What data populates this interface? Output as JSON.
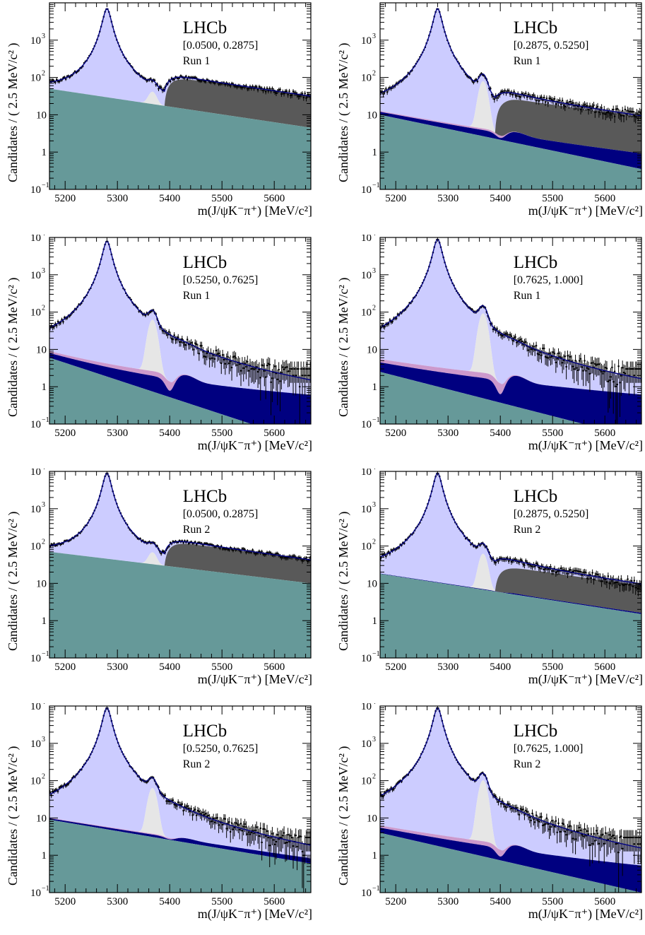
{
  "chart_data": [
    {
      "type": "histogram-fit",
      "experiment": "LHCb",
      "range_label": "[0.0500, 0.2875]",
      "run_label": "Run 1",
      "comb_start": 50,
      "comb_end": 4.5,
      "kpi_amp": 0,
      "kpi2_amp": 0,
      "bs_amp": 22,
      "partial_amp": 75,
      "b0_amp": 7000,
      "xlabel": "m(J/ψK⁻π⁺) [MeV/c²]",
      "ylabel": "Candidates / ( 2.5 MeV/c² )",
      "xlim": [
        5170,
        5670
      ],
      "ylim": [
        0.1,
        10000
      ],
      "yscale": "log"
    },
    {
      "type": "histogram-fit",
      "experiment": "LHCb",
      "range_label": "[0.2875, 0.5250]",
      "run_label": "Run 1",
      "comb_start": 10,
      "comb_end": 0.35,
      "kpi_amp": 2,
      "kpi2_amp": 0.6,
      "bs_amp": 75,
      "partial_amp": 22,
      "b0_amp": 7000,
      "xlabel": "m(J/ψK⁻π⁺) [MeV/c²]",
      "ylabel": "Candidates / ( 2.5 MeV/c² )",
      "xlim": [
        5170,
        5670
      ],
      "ylim": [
        0.1,
        10000
      ],
      "yscale": "log"
    },
    {
      "type": "histogram-fit",
      "experiment": "LHCb",
      "range_label": "[0.5250, 0.7625]",
      "run_label": "Run 1",
      "comb_start": 6,
      "comb_end": 0.03,
      "kpi_amp": 2,
      "kpi2_amp": 1,
      "bs_amp": 60,
      "partial_amp": 0,
      "b0_amp": 8000,
      "xlabel": "m(J/ψK⁻π⁺) [MeV/c²]",
      "ylabel": "Candidates / ( 2.5 MeV/c² )",
      "xlim": [
        5170,
        5670
      ],
      "ylim": [
        0.1,
        10000
      ],
      "yscale": "log"
    },
    {
      "type": "histogram-fit",
      "experiment": "LHCb",
      "range_label": "[0.7625, 1.000]",
      "run_label": "Run 1",
      "comb_start": 2.5,
      "comb_end": 0.04,
      "kpi_amp": 2,
      "kpi2_amp": 1,
      "bs_amp": 90,
      "partial_amp": 0,
      "b0_amp": 9000,
      "xlabel": "m(J/ψK⁻π⁺) [MeV/c²]",
      "ylabel": "Candidates / ( 2.5 MeV/c² )",
      "xlim": [
        5170,
        5670
      ],
      "ylim": [
        0.1,
        10000
      ],
      "yscale": "log"
    },
    {
      "type": "histogram-fit",
      "experiment": "LHCb",
      "range_label": "[0.0500, 0.2875]",
      "run_label": "Run 2",
      "comb_start": 70,
      "comb_end": 10,
      "kpi_amp": 0,
      "kpi2_amp": 0,
      "bs_amp": 35,
      "partial_amp": 90,
      "b0_amp": 9000,
      "xlabel": "m(J/ψK⁻π⁺) [MeV/c²]",
      "ylabel": "Candidates / ( 2.5 MeV/c² )",
      "xlim": [
        5170,
        5670
      ],
      "ylim": [
        0.1,
        10000
      ],
      "yscale": "log"
    },
    {
      "type": "histogram-fit",
      "experiment": "LHCb",
      "range_label": "[0.2875, 0.5250]",
      "run_label": "Run 2",
      "comb_start": 18,
      "comb_end": 1.5,
      "kpi_amp": 0.4,
      "kpi2_amp": 0,
      "bs_amp": 55,
      "partial_amp": 20,
      "b0_amp": 9000,
      "xlabel": "m(J/ψK⁻π⁺) [MeV/c²]",
      "ylabel": "Candidates / ( 2.5 MeV/c² )",
      "xlim": [
        5170,
        5670
      ],
      "ylim": [
        0.1,
        10000
      ],
      "yscale": "log"
    },
    {
      "type": "histogram-fit",
      "experiment": "LHCb",
      "range_label": "[0.5250, 0.7625]",
      "run_label": "Run 2",
      "comb_start": 9,
      "comb_end": 0.6,
      "kpi_amp": 0.8,
      "kpi2_amp": 0.3,
      "bs_amp": 60,
      "partial_amp": 0,
      "b0_amp": 9000,
      "xlabel": "m(J/ψK⁻π⁺) [MeV/c²]",
      "ylabel": "Candidates / ( 2.5 MeV/c² )",
      "xlim": [
        5170,
        5670
      ],
      "ylim": [
        0.1,
        10000
      ],
      "yscale": "log"
    },
    {
      "type": "histogram-fit",
      "experiment": "LHCb",
      "range_label": "[0.7625, 1.000]",
      "run_label": "Run 2",
      "comb_start": 4,
      "comb_end": 0.1,
      "kpi_amp": 1.5,
      "kpi2_amp": 0.8,
      "bs_amp": 100,
      "partial_amp": 0,
      "b0_amp": 9000,
      "xlabel": "m(J/ψK⁻π⁺) [MeV/c²]",
      "ylabel": "Candidates / ( 2.5 MeV/c² )",
      "xlim": [
        5170,
        5670
      ],
      "ylim": [
        0.1,
        10000
      ],
      "yscale": "log"
    }
  ],
  "x_ticks": [
    "5200",
    "5300",
    "5400",
    "5500",
    "5600"
  ],
  "y_ticks": [
    {
      "v": 0.1,
      "base": "10",
      "exp": "−1"
    },
    {
      "v": 1,
      "base": "1",
      "exp": ""
    },
    {
      "v": 10,
      "base": "10",
      "exp": ""
    },
    {
      "v": 100,
      "base": "10",
      "exp": "2"
    },
    {
      "v": 1000,
      "base": "10",
      "exp": "3"
    },
    {
      "v": 10000,
      "base": "10",
      "exp": "4"
    }
  ],
  "colors": {
    "combinatorial": "#669999",
    "partial_reco": "#595959",
    "bs_peak": "#e6e6e6",
    "b0_peak": "#ccccff",
    "kpi_component": "#000080",
    "kpi2_component": "#cc99cc",
    "fit_line": "#000080",
    "data": "#000000"
  }
}
